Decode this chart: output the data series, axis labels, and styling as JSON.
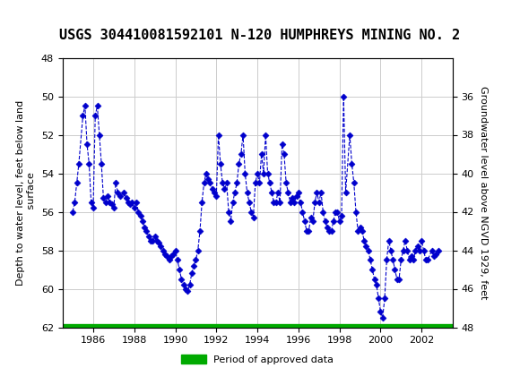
{
  "title": "USGS 304410081592101 N-120 HUMPHREYS MINING NO. 2",
  "ylabel_left": "Depth to water level, feet below land\n surface",
  "ylabel_right": "Groundwater level above NGVD 1929, feet",
  "xlabel": "",
  "ylim_left": [
    62,
    48
  ],
  "ylim_right": [
    34,
    48
  ],
  "yticks_left": [
    48,
    50,
    52,
    54,
    56,
    58,
    60,
    62
  ],
  "yticks_right": [
    36,
    38,
    40,
    42,
    44,
    46,
    48
  ],
  "xlim": [
    1984.5,
    2003.5
  ],
  "xticks": [
    1986,
    1988,
    1990,
    1992,
    1994,
    1996,
    1998,
    2000,
    2002
  ],
  "header_color": "#1a6b3c",
  "line_color": "#0000cc",
  "marker_color": "#0000cc",
  "approved_bar_color": "#00aa00",
  "background_color": "#ffffff",
  "grid_color": "#cccccc",
  "title_fontsize": 11,
  "label_fontsize": 8,
  "tick_fontsize": 8,
  "legend_label": "Period of approved data",
  "data_x": [
    1985.0,
    1985.1,
    1985.2,
    1985.3,
    1985.5,
    1985.6,
    1985.7,
    1985.8,
    1985.9,
    1986.0,
    1986.1,
    1986.2,
    1986.3,
    1986.4,
    1986.5,
    1986.6,
    1986.7,
    1986.8,
    1986.9,
    1987.0,
    1987.1,
    1987.2,
    1987.3,
    1987.5,
    1987.6,
    1987.7,
    1987.8,
    1987.9,
    1988.0,
    1988.1,
    1988.2,
    1988.3,
    1988.4,
    1988.5,
    1988.6,
    1988.7,
    1988.8,
    1988.9,
    1989.0,
    1989.1,
    1989.2,
    1989.3,
    1989.4,
    1989.5,
    1989.6,
    1989.7,
    1989.8,
    1989.9,
    1990.0,
    1990.1,
    1990.2,
    1990.3,
    1990.4,
    1990.5,
    1990.6,
    1990.7,
    1990.8,
    1990.9,
    1991.0,
    1991.1,
    1991.2,
    1991.3,
    1991.4,
    1991.5,
    1991.6,
    1991.7,
    1991.8,
    1991.9,
    1992.0,
    1992.1,
    1992.2,
    1992.3,
    1992.4,
    1992.5,
    1992.6,
    1992.7,
    1992.8,
    1992.9,
    1993.0,
    1993.1,
    1993.2,
    1993.3,
    1993.4,
    1993.5,
    1993.6,
    1993.7,
    1993.8,
    1993.9,
    1994.0,
    1994.1,
    1994.2,
    1994.3,
    1994.4,
    1994.5,
    1994.6,
    1994.7,
    1994.8,
    1994.9,
    1995.0,
    1995.1,
    1995.2,
    1995.3,
    1995.4,
    1995.5,
    1995.6,
    1995.7,
    1995.8,
    1995.9,
    1996.0,
    1996.1,
    1996.2,
    1996.3,
    1996.4,
    1996.5,
    1996.6,
    1996.7,
    1996.8,
    1996.9,
    1997.0,
    1997.1,
    1997.2,
    1997.3,
    1997.4,
    1997.5,
    1997.6,
    1997.7,
    1997.8,
    1997.9,
    1998.0,
    1998.1,
    1998.2,
    1998.3,
    1998.5,
    1998.6,
    1998.7,
    1998.8,
    1998.9,
    1999.0,
    1999.1,
    1999.2,
    1999.3,
    1999.4,
    1999.5,
    1999.6,
    1999.7,
    1999.8,
    1999.9,
    2000.0,
    2000.1,
    2000.2,
    2000.3,
    2000.4,
    2000.5,
    2000.6,
    2000.7,
    2000.8,
    2000.9,
    2001.0,
    2001.1,
    2001.2,
    2001.3,
    2001.4,
    2001.5,
    2001.6,
    2001.7,
    2001.8,
    2001.9,
    2002.0,
    2002.1,
    2002.2,
    2002.3,
    2002.5,
    2002.6,
    2002.7,
    2002.8
  ],
  "data_y": [
    56.0,
    55.5,
    54.5,
    53.5,
    51.0,
    50.5,
    52.5,
    53.5,
    55.5,
    55.8,
    51.0,
    50.5,
    52.0,
    53.5,
    55.3,
    55.5,
    55.2,
    55.5,
    55.6,
    55.8,
    54.5,
    55.0,
    55.2,
    55.0,
    55.3,
    55.5,
    55.6,
    55.5,
    55.8,
    55.5,
    56.0,
    56.2,
    56.5,
    56.8,
    57.0,
    57.3,
    57.5,
    57.5,
    57.3,
    57.5,
    57.6,
    57.8,
    58.0,
    58.2,
    58.3,
    58.5,
    58.3,
    58.2,
    58.0,
    58.5,
    59.0,
    59.5,
    59.8,
    60.0,
    60.1,
    59.8,
    59.2,
    58.8,
    58.5,
    58.0,
    57.0,
    55.5,
    54.5,
    54.0,
    54.3,
    54.5,
    54.8,
    55.0,
    55.2,
    52.0,
    53.5,
    54.5,
    54.8,
    54.5,
    56.0,
    56.5,
    55.5,
    55.0,
    54.5,
    53.5,
    53.0,
    52.0,
    54.0,
    55.0,
    55.5,
    56.0,
    56.3,
    54.5,
    54.0,
    54.5,
    53.0,
    54.0,
    52.0,
    54.0,
    54.5,
    55.0,
    55.5,
    55.5,
    55.0,
    55.5,
    52.5,
    53.0,
    54.5,
    55.0,
    55.5,
    55.3,
    55.5,
    55.2,
    55.0,
    55.5,
    56.0,
    56.5,
    57.0,
    57.0,
    56.3,
    56.5,
    55.5,
    55.0,
    55.5,
    55.0,
    56.0,
    56.5,
    56.8,
    57.0,
    57.0,
    56.5,
    56.0,
    56.0,
    56.5,
    56.2,
    50.0,
    55.0,
    52.0,
    53.5,
    54.5,
    56.0,
    57.0,
    56.8,
    57.0,
    57.5,
    57.8,
    58.0,
    58.5,
    59.0,
    59.5,
    59.8,
    60.5,
    61.2,
    61.5,
    60.5,
    58.5,
    57.5,
    58.0,
    58.5,
    59.0,
    59.5,
    59.5,
    58.5,
    58.0,
    57.5,
    58.0,
    58.5,
    58.3,
    58.5,
    58.0,
    57.8,
    58.0,
    57.5,
    58.0,
    58.5,
    58.5,
    58.0,
    58.3,
    58.2,
    58.0
  ]
}
